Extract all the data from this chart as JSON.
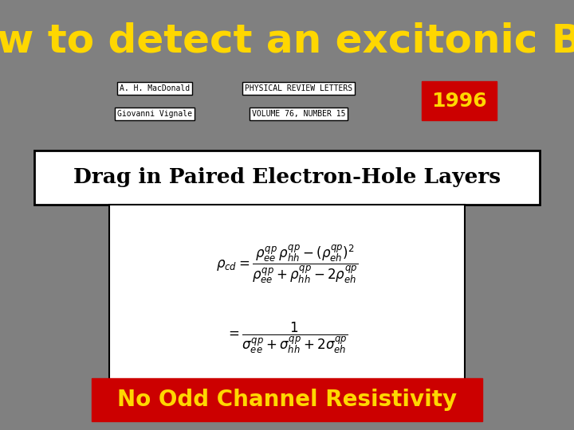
{
  "background_color": "#808080",
  "title_text": "How to detect an excitonic BEC",
  "title_color": "#FFD700",
  "title_fontsize": 36,
  "author1": "A. H. MacDonald",
  "author2": "Giovanni Vignale",
  "journal_line1": "PHYSICAL REVIEW LETTERS",
  "journal_line2": "VOLUME 76, NUMBER 15",
  "year_text": "1996",
  "year_bg": "#CC0000",
  "year_color": "#FFD700",
  "paper_title": "Drag in Paired Electron-Hole Layers",
  "bottom_text": "No Odd Channel Resistivity",
  "bottom_bg": "#CC0000",
  "bottom_color": "#FFD700"
}
